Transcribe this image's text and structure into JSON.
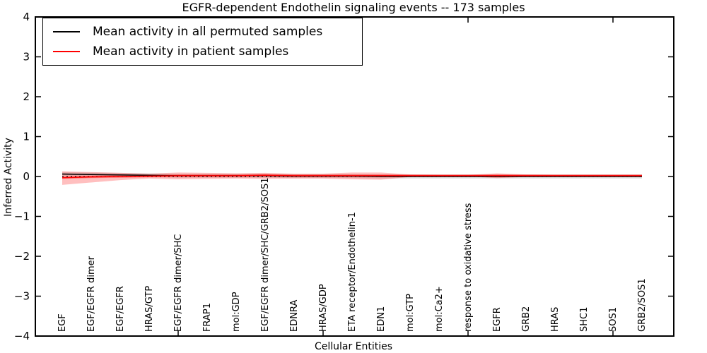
{
  "title": "EGFR-dependent Endothelin signaling events -- 173 samples",
  "axes": {
    "ylabel": "Inferred Activity",
    "xlabel": "Cellular Entities"
  },
  "legend": {
    "items": [
      {
        "label": "Mean activity in all permuted samples",
        "color": "#000000"
      },
      {
        "label": "Mean activity in patient samples",
        "color": "#ff0000"
      }
    ]
  },
  "chart_data": {
    "type": "line",
    "title": "EGFR-dependent Endothelin signaling events -- 173 samples",
    "xlabel": "Cellular Entities",
    "ylabel": "Inferred Activity",
    "ylim": [
      -4,
      4
    ],
    "yticks": [
      -4,
      -3,
      -2,
      -1,
      0,
      1,
      2,
      3,
      4
    ],
    "grid": false,
    "legend_position": "upper left",
    "categories": [
      "EGF",
      "EGF/EGFR dimer",
      "EGF/EGFR",
      "HRAS/GTP",
      "EGF/EGFR dimer/SHC",
      "FRAP1",
      "mol:GDP",
      "EGF/EGFR dimer/SHC/GRB2/SOS1",
      "EDNRA",
      "HRAS/GDP",
      "ETA receptor/Endothelin-1",
      "EDN1",
      "mol:GTP",
      "mol:Ca2+",
      "response to oxidative stress",
      "EGFR",
      "GRB2",
      "HRAS",
      "SHC1",
      "SOS1",
      "GRB2/SOS1"
    ],
    "series": [
      {
        "name": "Mean activity in all permuted samples",
        "color": "#000000",
        "style": "solid",
        "values": [
          0.06,
          0.05,
          0.04,
          0.03,
          0.02,
          0.02,
          0.02,
          0.02,
          0.01,
          0.01,
          0.01,
          0.0,
          0.0,
          0.0,
          0.0,
          0.0,
          0.0,
          0.0,
          0.0,
          0.0,
          0.0
        ]
      },
      {
        "name": "Mean activity in patient samples",
        "color": "#ff0000",
        "style": "solid",
        "values": [
          -0.03,
          -0.01,
          0.0,
          0.01,
          0.02,
          0.02,
          0.02,
          0.03,
          0.02,
          0.02,
          0.02,
          0.02,
          0.02,
          0.02,
          0.02,
          0.02,
          0.02,
          0.02,
          0.02,
          0.02,
          0.02
        ]
      }
    ],
    "zero_line": {
      "y": 0,
      "style": "dotted",
      "color": "#000000"
    },
    "bands": [
      {
        "name": "permuted-std-band",
        "color": "rgba(0,0,0,0.12)",
        "upper": [
          0.11,
          0.1,
          0.09,
          0.08,
          0.07,
          0.07,
          0.07,
          0.07,
          0.06,
          0.06,
          0.06,
          0.05,
          0.05,
          0.05,
          0.05,
          0.05,
          0.05,
          0.05,
          0.05,
          0.05,
          0.05
        ],
        "lower": [
          0.01,
          0.0,
          -0.01,
          -0.02,
          -0.03,
          -0.03,
          -0.03,
          -0.03,
          -0.04,
          -0.04,
          -0.04,
          -0.05,
          -0.05,
          -0.05,
          -0.05,
          -0.05,
          -0.05,
          -0.05,
          -0.05,
          -0.05,
          -0.05
        ]
      },
      {
        "name": "patient-std-band",
        "color": "rgba(255,0,0,0.25)",
        "upper": [
          0.13,
          0.11,
          0.09,
          0.07,
          0.1,
          0.09,
          0.08,
          0.09,
          0.07,
          0.07,
          0.1,
          0.1,
          0.05,
          0.04,
          0.04,
          0.08,
          0.05,
          0.04,
          0.04,
          0.04,
          0.04
        ],
        "lower": [
          -0.21,
          -0.15,
          -0.09,
          -0.05,
          -0.07,
          -0.06,
          -0.05,
          -0.06,
          -0.05,
          -0.05,
          -0.07,
          -0.08,
          -0.01,
          0.0,
          0.0,
          -0.04,
          -0.01,
          0.0,
          0.0,
          0.0,
          0.0
        ]
      },
      {
        "name": "patient-inner-band",
        "color": "rgba(255,0,0,0.35)",
        "upper": [
          0.0,
          0.02,
          0.03,
          0.04,
          0.05,
          0.05,
          0.05,
          0.06,
          0.05,
          0.05,
          0.05,
          0.05,
          0.05,
          0.05,
          0.05,
          0.05,
          0.05,
          0.05,
          0.05,
          0.05,
          0.05
        ],
        "lower": [
          -0.06,
          -0.04,
          -0.03,
          -0.02,
          -0.01,
          -0.01,
          -0.01,
          0.0,
          -0.01,
          -0.01,
          -0.01,
          -0.01,
          -0.01,
          -0.01,
          -0.01,
          -0.01,
          -0.01,
          -0.01,
          -0.01,
          -0.01,
          -0.01
        ]
      }
    ]
  }
}
